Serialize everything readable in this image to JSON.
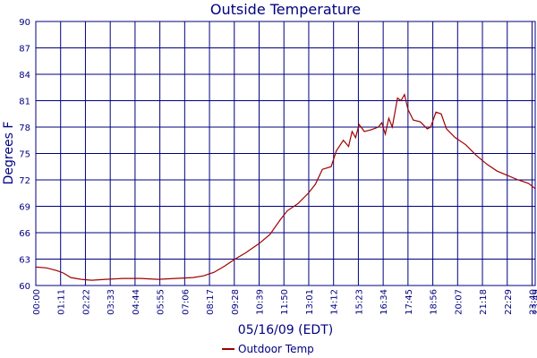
{
  "chart_data": {
    "type": "line",
    "title": "Outside Temperature",
    "x_label": "05/16/09 (EDT)",
    "y_label": "Degrees F",
    "series": [
      {
        "name": "Outdoor Temp",
        "color": "#a00000",
        "x": [
          0,
          30,
          60,
          80,
          100,
          130,
          160,
          200,
          250,
          300,
          350,
          400,
          450,
          480,
          510,
          540,
          570,
          600,
          640,
          670,
          700,
          720,
          750,
          780,
          800,
          820,
          845,
          860,
          880,
          895,
          905,
          915,
          925,
          940,
          960,
          980,
          990,
          1000,
          1010,
          1020,
          1035,
          1045,
          1055,
          1065,
          1080,
          1100,
          1120,
          1130,
          1145,
          1160,
          1175,
          1200,
          1230,
          1260,
          1290,
          1320,
          1350,
          1380,
          1410,
          1429
        ],
        "values": [
          62.1,
          62.0,
          61.7,
          61.4,
          60.9,
          60.7,
          60.6,
          60.7,
          60.8,
          60.8,
          60.7,
          60.8,
          60.9,
          61.1,
          61.5,
          62.2,
          63.0,
          63.7,
          64.8,
          65.8,
          67.5,
          68.5,
          69.3,
          70.5,
          71.5,
          73.2,
          73.5,
          75.3,
          76.5,
          75.8,
          77.5,
          76.8,
          78.3,
          77.5,
          77.7,
          78.0,
          78.5,
          77.2,
          79.0,
          78.0,
          81.3,
          81.0,
          81.7,
          80.0,
          78.8,
          78.6,
          77.8,
          78.0,
          79.7,
          79.5,
          77.8,
          76.8,
          76.0,
          74.8,
          73.8,
          73.0,
          72.5,
          72.0,
          71.6,
          71.0
        ]
      }
    ],
    "xlim": [
      0,
      1429
    ],
    "xticks": [
      {
        "value": 0,
        "label": "00:00"
      },
      {
        "value": 71,
        "label": "01:11"
      },
      {
        "value": 142,
        "label": "02:22"
      },
      {
        "value": 213,
        "label": "03:33"
      },
      {
        "value": 284,
        "label": "04:44"
      },
      {
        "value": 355,
        "label": "05:55"
      },
      {
        "value": 426,
        "label": "07:06"
      },
      {
        "value": 497,
        "label": "08:17"
      },
      {
        "value": 568,
        "label": "09:28"
      },
      {
        "value": 639,
        "label": "10:39"
      },
      {
        "value": 710,
        "label": "11:50"
      },
      {
        "value": 781,
        "label": "13:01"
      },
      {
        "value": 852,
        "label": "14:12"
      },
      {
        "value": 923,
        "label": "15:23"
      },
      {
        "value": 994,
        "label": "16:34"
      },
      {
        "value": 1065,
        "label": "17:45"
      },
      {
        "value": 1136,
        "label": "18:56"
      },
      {
        "value": 1207,
        "label": "20:07"
      },
      {
        "value": 1278,
        "label": "21:18"
      },
      {
        "value": 1349,
        "label": "22:29"
      },
      {
        "value": 1420,
        "label": "23:40"
      },
      {
        "value": 1429,
        "label": "23:49"
      }
    ],
    "ylim": [
      60,
      90
    ],
    "yticks": [
      60,
      63,
      66,
      69,
      72,
      75,
      78,
      81,
      84,
      87,
      90
    ],
    "grid": true
  }
}
